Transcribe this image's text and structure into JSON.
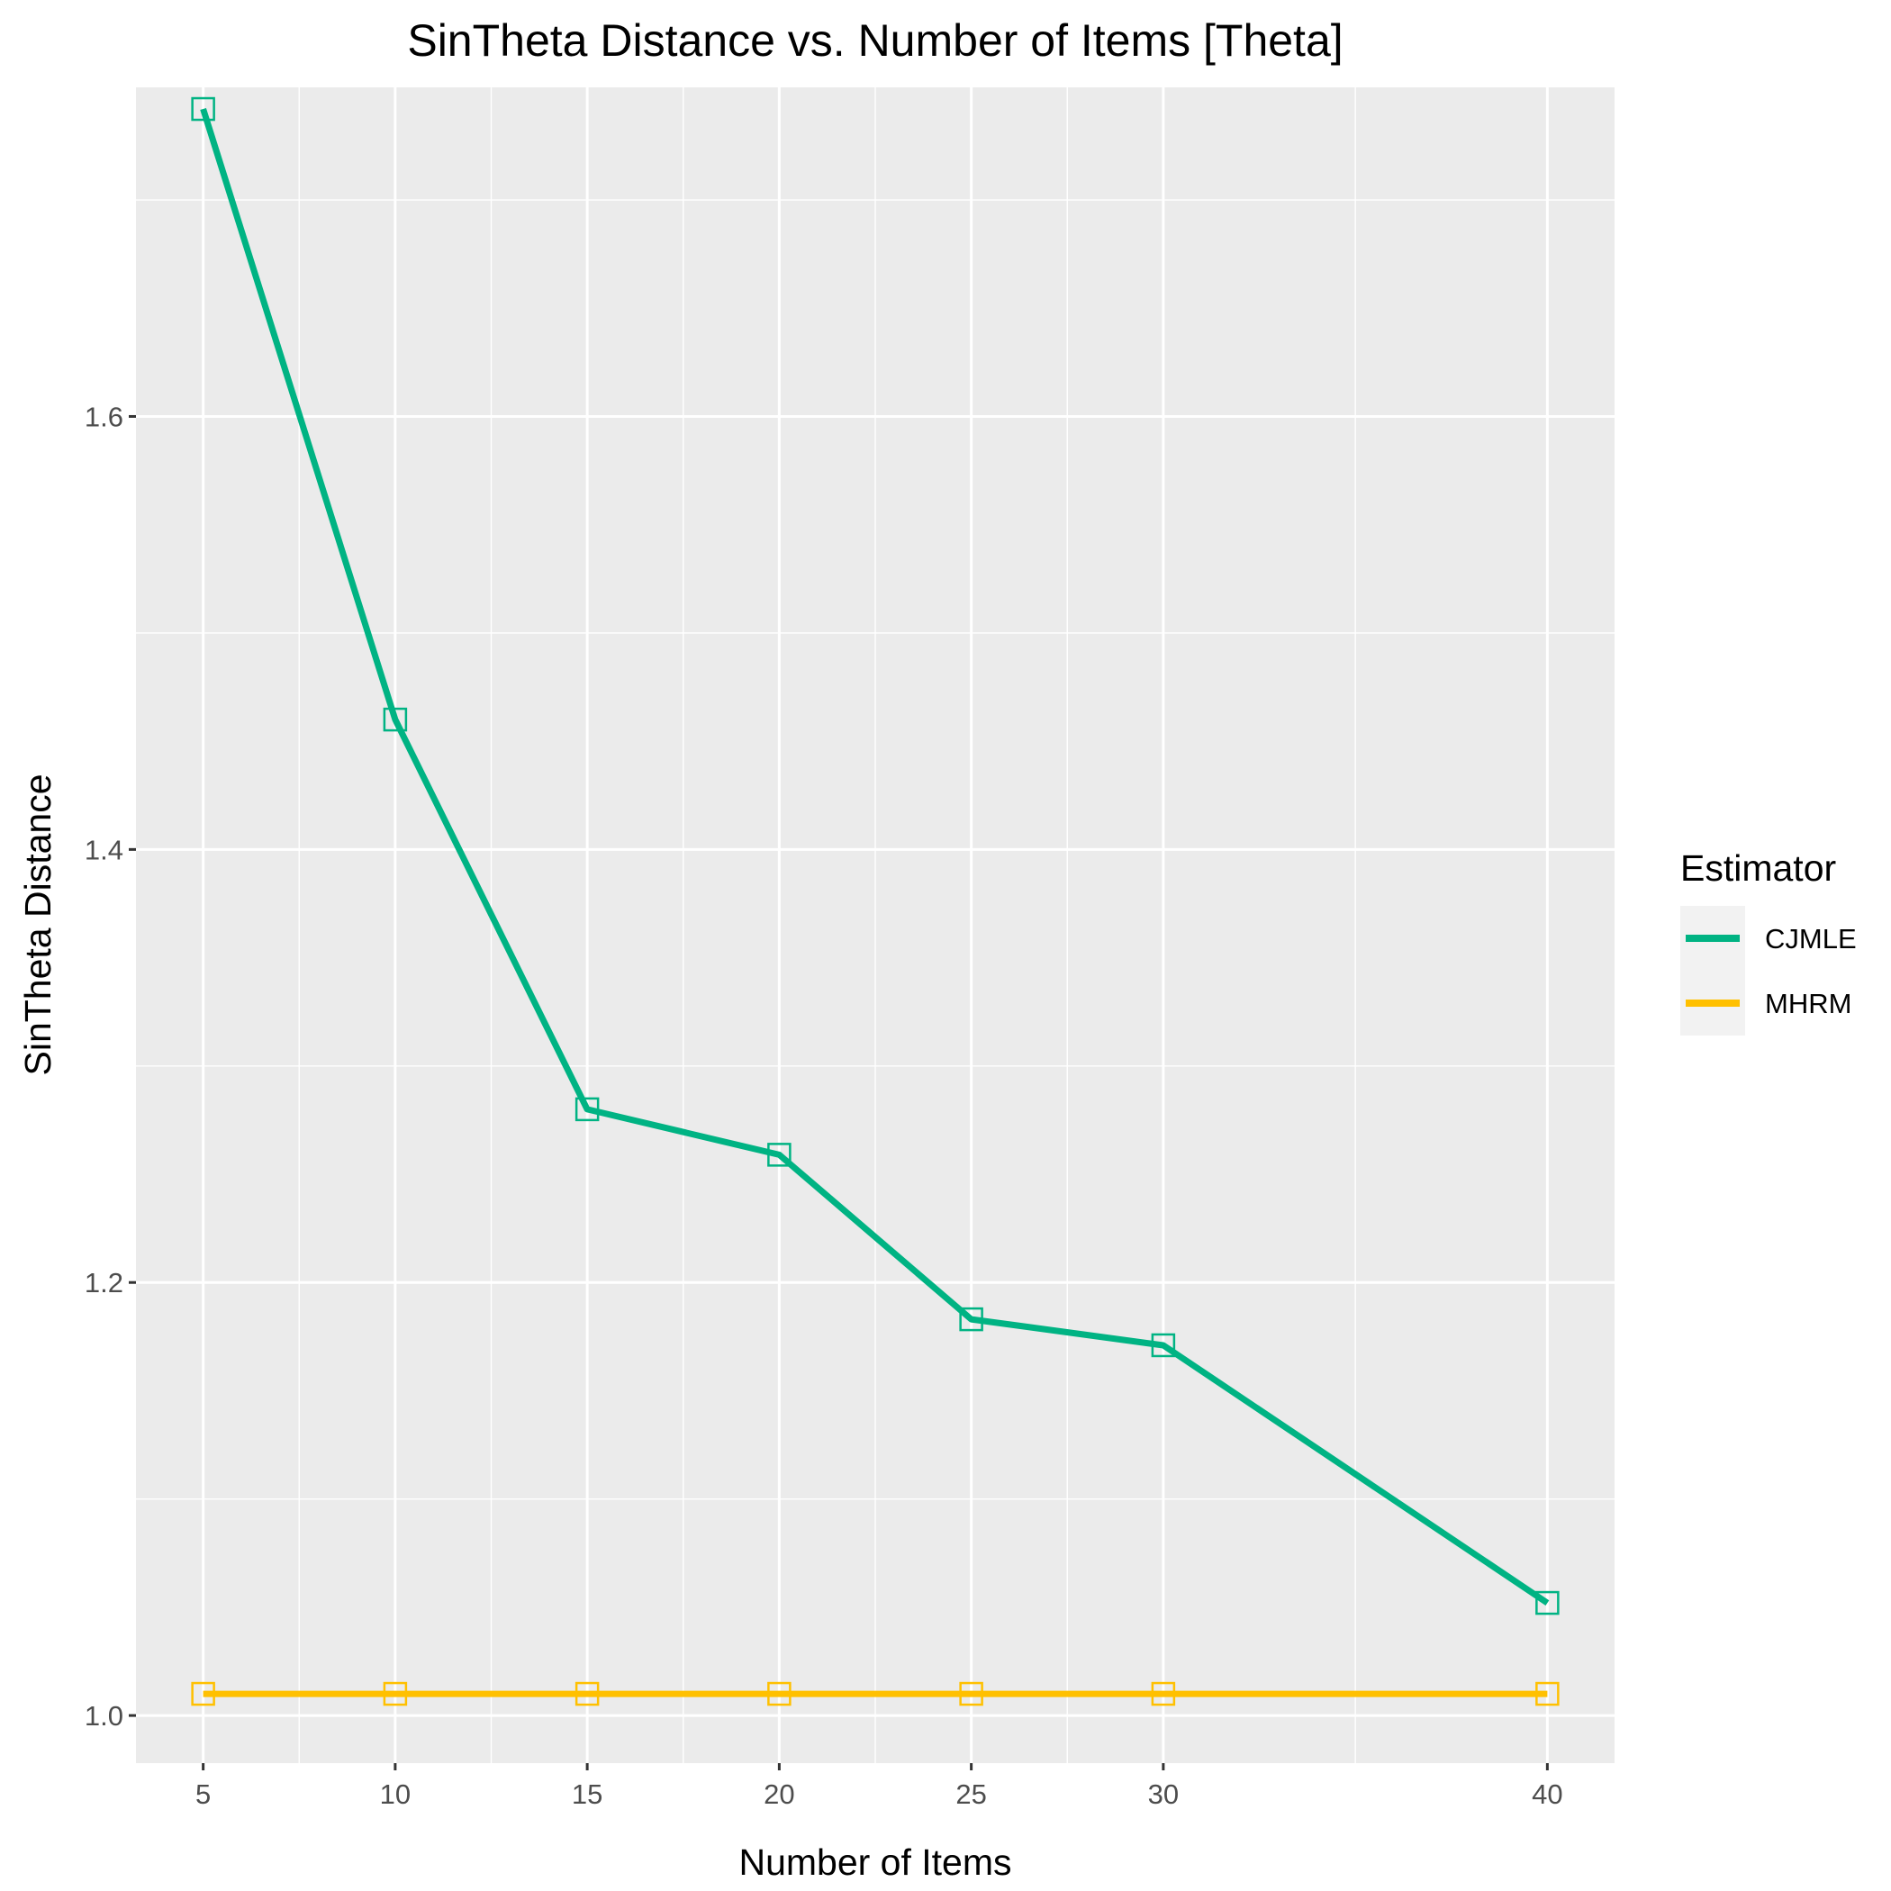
{
  "chart_data": {
    "type": "line",
    "title": "SinTheta Distance vs. Number of Items [Theta]",
    "xlabel": "Number of Items",
    "ylabel": "SinTheta Distance",
    "x": [
      5,
      10,
      15,
      20,
      25,
      30,
      40
    ],
    "xticks": [
      5,
      10,
      15,
      20,
      25,
      30,
      40
    ],
    "yticks": [
      1.0,
      1.2,
      1.4,
      1.6
    ],
    "ytick_labels": [
      "1.0",
      "1.2",
      "1.4",
      "1.6"
    ],
    "xlim": [
      3.25,
      41.75
    ],
    "ylim": [
      0.978,
      1.752
    ],
    "grid": true,
    "marker": "open-square",
    "series": [
      {
        "name": "CJMLE",
        "color": "#00b383",
        "values": [
          1.742,
          1.46,
          1.28,
          1.259,
          1.183,
          1.171,
          1.052
        ]
      },
      {
        "name": "MHRM",
        "color": "#ffc000",
        "values": [
          1.01,
          1.01,
          1.01,
          1.01,
          1.01,
          1.01,
          1.01
        ]
      }
    ],
    "legend": {
      "title": "Estimator",
      "position": "right",
      "entries": [
        "CJMLE",
        "MHRM"
      ]
    }
  }
}
